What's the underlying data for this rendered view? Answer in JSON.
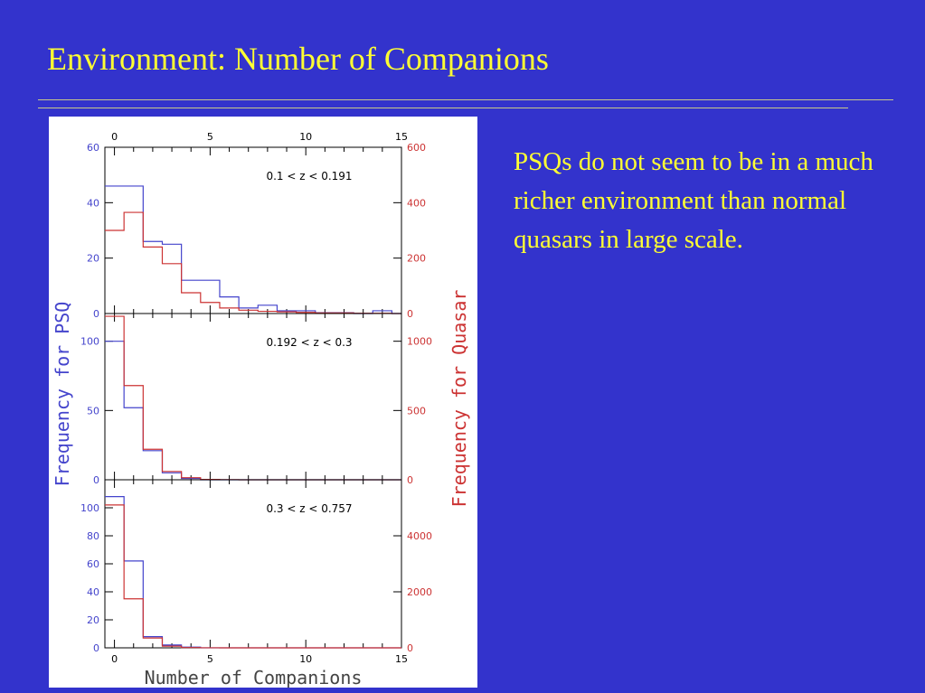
{
  "slide": {
    "title": "Environment: Number of Companions",
    "body_text": "PSQs do not seem to be in a much richer environment than normal quasars in large scale."
  },
  "colors": {
    "background": "#3333cc",
    "title_text": "#ffff33",
    "psq_series": "#4444cc",
    "quasar_series": "#cc3333"
  },
  "chart_data": {
    "type": "line",
    "style": "step-histogram",
    "xlabel": "Number of Companions",
    "ylabel_left": "Frequency for PSQ",
    "ylabel_right": "Frequency for Quasar",
    "x_ticks": [
      0,
      5,
      10,
      15
    ],
    "xlim": [
      -0.5,
      15
    ],
    "bin_edges": [
      -0.5,
      0.5,
      1.5,
      2.5,
      3.5,
      4.5,
      5.5,
      6.5,
      7.5,
      8.5,
      9.5,
      10.5,
      11.5,
      12.5,
      13.5,
      14.5,
      15
    ],
    "panels": [
      {
        "annotation": "0.1 < z < 0.191",
        "ylim_left": [
          0,
          60
        ],
        "ylim_right": [
          0,
          600
        ],
        "yticks_left": [
          0,
          20,
          40,
          60
        ],
        "yticks_right": [
          0,
          200,
          400,
          600
        ],
        "series": [
          {
            "axis": "left",
            "color": "#4444cc",
            "values": [
              46,
              46,
              26,
              25,
              12,
              12,
              6,
              2,
              3,
              1,
              1,
              0.3,
              0.3,
              0,
              1,
              0
            ]
          },
          {
            "axis": "right",
            "color": "#cc3333",
            "values": [
              300,
              365,
              240,
              180,
              75,
              40,
              20,
              12,
              8,
              6,
              4,
              2,
              2,
              1,
              1,
              0
            ]
          }
        ]
      },
      {
        "annotation": "0.192 < z < 0.3",
        "ylim_left": [
          0,
          120
        ],
        "ylim_right": [
          0,
          1200
        ],
        "yticks_left": [
          0,
          50,
          100
        ],
        "yticks_right": [
          0,
          500,
          1000
        ],
        "series": [
          {
            "axis": "left",
            "color": "#4444cc",
            "values": [
              100,
              52,
              21,
              5,
              1,
              0,
              0,
              0,
              0,
              0,
              0,
              0,
              0,
              0,
              0,
              0
            ]
          },
          {
            "axis": "right",
            "color": "#cc3333",
            "values": [
              1180,
              680,
              220,
              60,
              15,
              3,
              1,
              0,
              0,
              0,
              0,
              0,
              0,
              0,
              0,
              0
            ]
          }
        ]
      },
      {
        "annotation": "0.3 < z < 0.757",
        "ylim_left": [
          0,
          120
        ],
        "ylim_right": [
          0,
          6000
        ],
        "yticks_left": [
          0,
          20,
          40,
          60,
          80,
          100
        ],
        "yticks_right": [
          0,
          2000,
          4000
        ],
        "series": [
          {
            "axis": "left",
            "color": "#4444cc",
            "values": [
              108,
              62,
              8,
              2,
              0.5,
              0,
              0,
              0,
              0,
              0,
              0,
              0,
              0,
              0,
              0,
              0
            ]
          },
          {
            "axis": "right",
            "color": "#cc3333",
            "values": [
              5100,
              1750,
              350,
              60,
              10,
              2,
              0,
              0,
              0,
              0,
              0,
              0,
              0,
              0,
              0,
              0
            ]
          }
        ]
      }
    ]
  }
}
